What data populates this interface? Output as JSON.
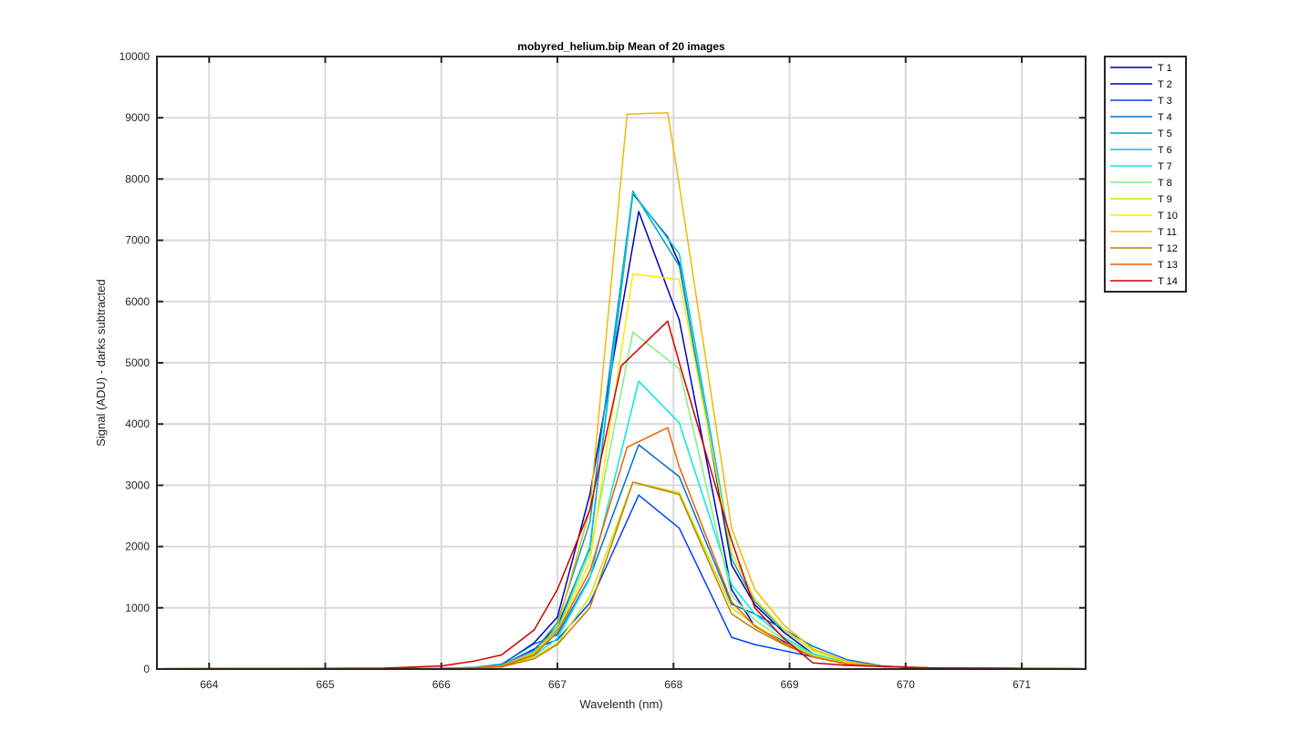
{
  "chart_data": {
    "type": "line",
    "title": "mobyred_helium.bip  Mean of 20 images",
    "xlabel": "Wavelenth (nm)",
    "ylabel": "Signal (ADU) - darks subtracted",
    "xlim": [
      663.55,
      671.55
    ],
    "ylim": [
      0,
      10000
    ],
    "xticks": [
      664,
      665,
      666,
      667,
      668,
      669,
      670,
      671
    ],
    "yticks": [
      0,
      1000,
      2000,
      3000,
      4000,
      5000,
      6000,
      7000,
      8000,
      9000,
      10000
    ],
    "grid": true,
    "legend_position": "outside-top-right",
    "series": [
      {
        "name": "T 1",
        "color": "#00008f",
        "x": [
          663.55,
          664.0,
          664.5,
          665.0,
          665.5,
          666.0,
          666.28,
          666.52,
          666.8,
          667.0,
          667.28,
          667.65,
          667.95,
          668.05,
          668.5,
          668.7,
          668.95,
          669.2,
          669.5,
          669.8,
          670.2,
          671.0,
          671.55
        ],
        "y": [
          5,
          6,
          7,
          8,
          10,
          12,
          20,
          50,
          320,
          700,
          1980,
          7760,
          7050,
          6620,
          1700,
          1050,
          600,
          250,
          90,
          40,
          20,
          10,
          5
        ]
      },
      {
        "name": "T 2",
        "color": "#0000c0",
        "x": [
          663.55,
          664.0,
          664.5,
          665.0,
          665.5,
          666.0,
          666.28,
          666.52,
          666.8,
          667.0,
          667.28,
          667.7,
          667.95,
          668.05,
          668.5,
          668.7,
          668.95,
          669.2,
          669.5,
          669.8,
          670.2,
          671.0,
          671.55
        ],
        "y": [
          5,
          6,
          7,
          8,
          10,
          12,
          22,
          70,
          430,
          850,
          2850,
          7470,
          6200,
          5700,
          1300,
          700,
          450,
          200,
          80,
          40,
          20,
          10,
          5
        ]
      },
      {
        "name": "T 3",
        "color": "#0040ff",
        "x": [
          663.55,
          664.0,
          664.5,
          665.0,
          665.5,
          666.0,
          666.28,
          666.52,
          666.8,
          667.0,
          667.28,
          667.7,
          668.05,
          668.5,
          668.7,
          668.95,
          669.2,
          669.5,
          669.8,
          670.2,
          671.0,
          671.55
        ],
        "y": [
          5,
          6,
          7,
          8,
          10,
          12,
          20,
          60,
          330,
          480,
          1080,
          2840,
          2300,
          520,
          400,
          300,
          200,
          90,
          40,
          20,
          10,
          5
        ]
      },
      {
        "name": "T 4",
        "color": "#0070d0",
        "x": [
          663.55,
          664.0,
          664.5,
          665.0,
          665.5,
          666.0,
          666.28,
          666.52,
          666.8,
          667.0,
          667.28,
          667.7,
          668.05,
          668.5,
          668.7,
          668.95,
          669.2,
          669.5,
          669.8,
          670.2,
          671.0,
          671.55
        ],
        "y": [
          5,
          6,
          7,
          8,
          10,
          12,
          25,
          80,
          410,
          560,
          1500,
          3660,
          3140,
          1060,
          900,
          650,
          370,
          150,
          50,
          20,
          10,
          5
        ]
      },
      {
        "name": "T 5",
        "color": "#00a0c8",
        "x": [
          663.55,
          664.0,
          664.5,
          665.0,
          665.5,
          666.0,
          666.28,
          666.52,
          666.8,
          667.0,
          667.28,
          667.65,
          668.05,
          668.5,
          668.7,
          668.95,
          669.2,
          669.5,
          669.8,
          670.2,
          671.0,
          671.55
        ],
        "y": [
          5,
          6,
          7,
          8,
          10,
          12,
          22,
          65,
          300,
          760,
          2400,
          7800,
          6580,
          1800,
          1100,
          640,
          300,
          110,
          40,
          20,
          10,
          5
        ]
      },
      {
        "name": "T 6",
        "color": "#00c8d8",
        "x": [
          663.55,
          664.0,
          664.5,
          665.0,
          665.5,
          666.0,
          666.28,
          666.52,
          666.8,
          667.0,
          667.28,
          667.65,
          668.05,
          668.5,
          668.7,
          668.95,
          669.2,
          669.5,
          669.8,
          670.2,
          671.0,
          671.55
        ],
        "y": [
          5,
          6,
          7,
          8,
          10,
          12,
          20,
          50,
          250,
          650,
          2000,
          7780,
          6780,
          1900,
          1150,
          650,
          300,
          110,
          40,
          20,
          10,
          5
        ]
      },
      {
        "name": "T 7",
        "color": "#00e8e8",
        "x": [
          663.55,
          664.0,
          664.5,
          665.0,
          665.5,
          666.0,
          666.28,
          666.52,
          666.8,
          667.0,
          667.28,
          667.7,
          668.05,
          668.5,
          668.7,
          668.95,
          669.2,
          669.5,
          669.8,
          670.2,
          671.0,
          671.55
        ],
        "y": [
          5,
          6,
          7,
          8,
          10,
          12,
          18,
          45,
          220,
          500,
          1480,
          4700,
          4020,
          1380,
          900,
          520,
          250,
          100,
          40,
          20,
          10,
          5
        ]
      },
      {
        "name": "T 8",
        "color": "#80f080",
        "x": [
          663.55,
          664.0,
          664.5,
          665.0,
          665.5,
          666.0,
          666.28,
          666.52,
          666.8,
          667.0,
          667.28,
          667.65,
          668.05,
          668.5,
          668.7,
          668.95,
          669.2,
          669.5,
          669.8,
          670.2,
          671.0,
          671.55
        ],
        "y": [
          5,
          6,
          7,
          8,
          10,
          12,
          20,
          55,
          280,
          620,
          1900,
          5500,
          4900,
          1200,
          800,
          480,
          230,
          90,
          40,
          20,
          10,
          5
        ]
      },
      {
        "name": "T 9",
        "color": "#c8e800",
        "x": [
          663.55,
          664.0,
          664.5,
          665.0,
          665.5,
          666.0,
          666.28,
          666.52,
          666.8,
          667.0,
          667.28,
          667.65,
          668.05,
          668.5,
          668.7,
          668.95,
          669.2,
          669.5,
          669.8,
          670.2,
          671.0,
          671.55
        ],
        "y": [
          5,
          6,
          7,
          8,
          10,
          12,
          18,
          40,
          200,
          420,
          1180,
          3050,
          2880,
          1000,
          720,
          430,
          220,
          90,
          40,
          20,
          10,
          5
        ]
      },
      {
        "name": "T 10",
        "color": "#ffe800",
        "x": [
          663.55,
          664.0,
          664.5,
          665.0,
          665.5,
          666.0,
          666.28,
          666.52,
          666.8,
          667.0,
          667.28,
          667.65,
          668.05,
          668.5,
          668.7,
          668.95,
          669.2,
          669.5,
          669.8,
          670.2,
          671.0,
          671.55
        ],
        "y": [
          5,
          6,
          7,
          8,
          10,
          12,
          18,
          45,
          240,
          600,
          1750,
          6450,
          6360,
          1900,
          1150,
          650,
          300,
          110,
          40,
          20,
          10,
          5
        ]
      },
      {
        "name": "T 11",
        "color": "#f0b800",
        "x": [
          663.55,
          664.0,
          664.5,
          665.0,
          665.5,
          666.0,
          666.28,
          666.52,
          666.8,
          667.0,
          667.28,
          667.6,
          667.95,
          668.05,
          668.5,
          668.7,
          668.95,
          669.2,
          669.5,
          669.8,
          670.2,
          671.0,
          671.55
        ],
        "y": [
          5,
          6,
          7,
          8,
          10,
          12,
          20,
          50,
          260,
          700,
          2600,
          9060,
          9080,
          7900,
          2300,
          1300,
          720,
          330,
          120,
          40,
          20,
          10,
          5
        ]
      },
      {
        "name": "T 12",
        "color": "#c08000",
        "x": [
          663.55,
          664.0,
          664.5,
          665.0,
          665.5,
          666.0,
          666.28,
          666.52,
          666.8,
          667.0,
          667.28,
          667.65,
          668.05,
          668.5,
          668.7,
          668.95,
          669.2,
          669.5,
          669.8,
          670.2,
          671.0,
          671.55
        ],
        "y": [
          5,
          6,
          7,
          8,
          10,
          12,
          16,
          35,
          170,
          400,
          1000,
          3050,
          2850,
          900,
          650,
          400,
          200,
          80,
          40,
          20,
          10,
          5
        ]
      },
      {
        "name": "T 13",
        "color": "#f06000",
        "x": [
          663.55,
          664.0,
          664.5,
          665.0,
          665.5,
          666.0,
          666.28,
          666.52,
          666.8,
          667.0,
          667.28,
          667.6,
          667.95,
          668.05,
          668.5,
          668.7,
          668.95,
          669.2,
          669.5,
          669.8,
          670.2,
          671.0,
          671.55
        ],
        "y": [
          5,
          6,
          7,
          8,
          10,
          12,
          18,
          45,
          230,
          600,
          1600,
          3620,
          3940,
          3300,
          1100,
          700,
          420,
          200,
          80,
          40,
          20,
          10,
          5
        ]
      },
      {
        "name": "T 14",
        "color": "#d00000",
        "x": [
          663.55,
          664.0,
          664.5,
          665.0,
          665.5,
          666.0,
          666.28,
          666.52,
          666.8,
          667.0,
          667.28,
          667.55,
          667.95,
          668.05,
          668.5,
          668.7,
          668.95,
          669.2,
          669.5,
          669.8,
          670.2,
          671.0,
          671.55
        ],
        "y": [
          5,
          6,
          8,
          10,
          15,
          50,
          130,
          230,
          640,
          1300,
          2600,
          4950,
          5680,
          5000,
          2100,
          1000,
          500,
          100,
          60,
          40,
          20,
          10,
          5
        ]
      }
    ]
  }
}
